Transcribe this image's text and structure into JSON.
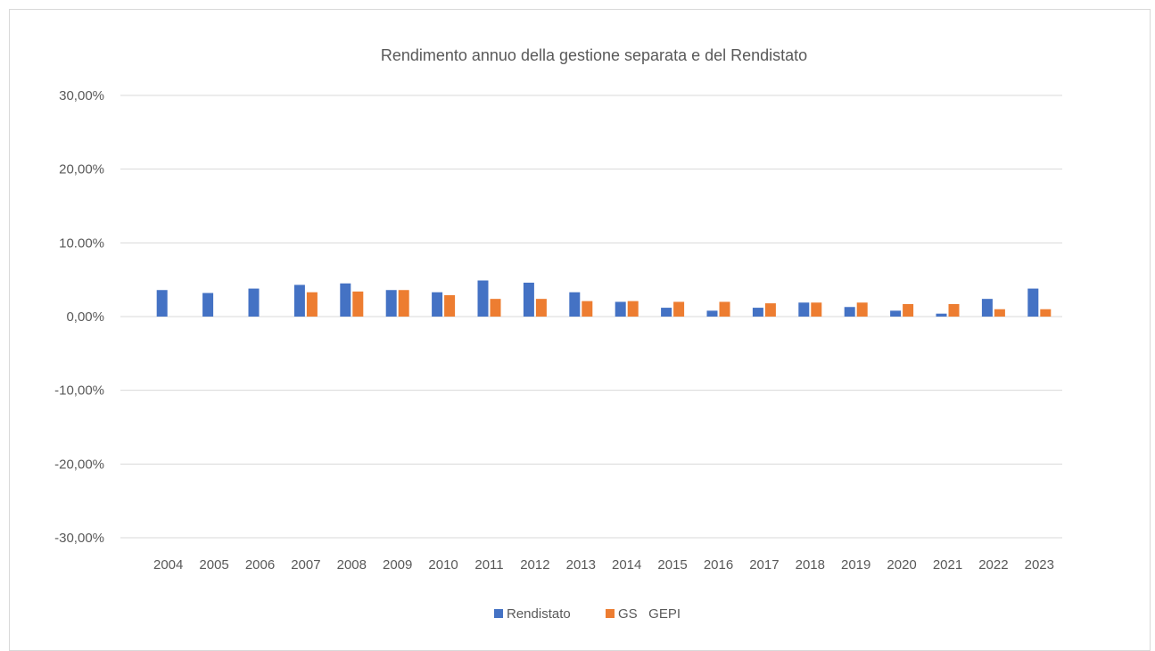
{
  "chart_data": {
    "type": "bar",
    "title": "Rendimento annuo della gestione separata e del Rendistato",
    "categories": [
      "2004",
      "2005",
      "2006",
      "2007",
      "2008",
      "2009",
      "2010",
      "2011",
      "2012",
      "2013",
      "2014",
      "2015",
      "2016",
      "2017",
      "2018",
      "2019",
      "2020",
      "2021",
      "2022",
      "2023"
    ],
    "series": [
      {
        "name": "Rendistato",
        "color": "#4472c4",
        "values": [
          3.6,
          3.2,
          3.8,
          4.3,
          4.5,
          3.6,
          3.3,
          4.9,
          4.6,
          3.3,
          2.0,
          1.2,
          0.8,
          1.2,
          1.9,
          1.3,
          0.8,
          0.4,
          2.4,
          3.8
        ]
      },
      {
        "name": "GS   GEPI",
        "color": "#ed7d31",
        "values": [
          null,
          null,
          null,
          3.3,
          3.4,
          3.6,
          2.9,
          2.4,
          2.4,
          2.1,
          2.1,
          2.0,
          2.0,
          1.8,
          1.9,
          1.9,
          1.7,
          1.7,
          1.0,
          1.0
        ]
      }
    ],
    "ylim": [
      -30,
      30
    ],
    "yticks": [
      30,
      20,
      10,
      0,
      -10,
      -20,
      -30
    ],
    "ytick_labels": [
      "30,00%",
      "20,00%",
      "10.00%",
      "0,00%",
      "-10,00%",
      "-20,00%",
      "-30,00%"
    ],
    "grid": true,
    "legend_position": "bottom"
  }
}
